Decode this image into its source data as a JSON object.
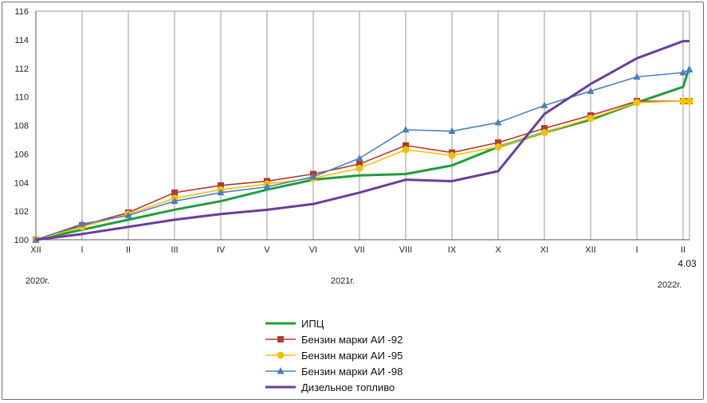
{
  "chart_data": {
    "type": "line",
    "categories": [
      "XII",
      "I",
      "II",
      "III",
      "IV",
      "V",
      "VI",
      "VII",
      "VIII",
      "IX",
      "X",
      "XI",
      "XII",
      "I",
      "II",
      "4.03"
    ],
    "year_labels": [
      "2020г.",
      "2021г.",
      "2022г."
    ],
    "extra_label": "4.03",
    "ylim": [
      100,
      116
    ],
    "yticks": [
      100,
      102,
      104,
      106,
      108,
      110,
      112,
      114,
      116
    ],
    "grid": "vertical",
    "legend_position": "bottom",
    "series": [
      {
        "name": "ИПЦ",
        "color": "#1e9e3e",
        "marker": "none",
        "values": [
          100,
          100.7,
          101.4,
          102.1,
          102.7,
          103.5,
          104.2,
          104.5,
          104.6,
          105.2,
          106.5,
          107.5,
          108.4,
          109.6,
          110.7,
          112.1
        ]
      },
      {
        "name": "Бензин марки АИ -92",
        "color": "#b03a2e",
        "marker": "square",
        "values": [
          100,
          101.0,
          101.9,
          103.3,
          103.8,
          104.1,
          104.6,
          105.3,
          106.6,
          106.1,
          106.8,
          107.8,
          108.7,
          109.7,
          109.7,
          109.7
        ]
      },
      {
        "name": "Бензин марки АИ -95",
        "color": "#f5c000",
        "marker": "circle",
        "values": [
          100,
          100.9,
          101.8,
          102.9,
          103.5,
          103.9,
          104.3,
          105.0,
          106.3,
          105.9,
          106.5,
          107.5,
          108.5,
          109.6,
          109.7,
          109.7
        ]
      },
      {
        "name": "Бензин марки АИ -98",
        "color": "#4a7fc1",
        "marker": "triangle",
        "values": [
          100,
          101.1,
          101.7,
          102.7,
          103.3,
          103.7,
          104.4,
          105.7,
          107.7,
          107.6,
          108.2,
          109.4,
          110.4,
          111.4,
          111.7,
          111.9
        ]
      },
      {
        "name": "Дизельное топливо",
        "color": "#6a3d9a",
        "marker": "none",
        "values": [
          100,
          100.4,
          100.9,
          101.4,
          101.8,
          102.1,
          102.5,
          103.3,
          104.2,
          104.1,
          104.8,
          108.8,
          110.9,
          112.7,
          113.9,
          113.9
        ]
      }
    ]
  }
}
